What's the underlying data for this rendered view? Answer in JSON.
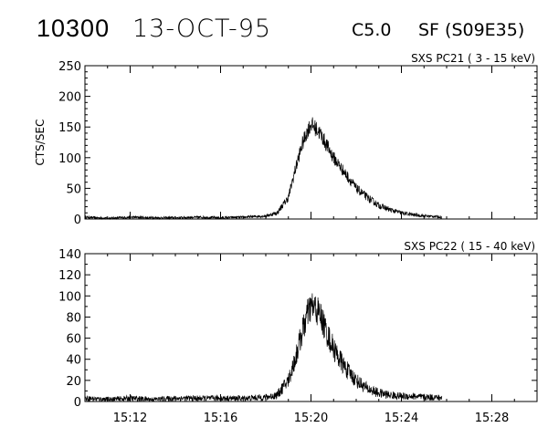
{
  "header": {
    "event_number": "10300",
    "date": "13-OCT-95",
    "goes_class": "C5.0",
    "flare_info": "SF (S09E35)"
  },
  "chart_data": [
    {
      "type": "line",
      "title": "SXS PC21  (  3 - 15 keV)",
      "xlabel": "",
      "ylabel": "CTS/SEC",
      "xlim": [
        "15:10",
        "15:30"
      ],
      "ylim": [
        0,
        250
      ],
      "xticks": [
        "15:12",
        "15:16",
        "15:20",
        "15:24",
        "15:28"
      ],
      "yticks": [
        "0",
        "50",
        "100",
        "150",
        "200",
        "250"
      ],
      "grid": false,
      "series": [
        {
          "x": [
            "15:10",
            "15:11",
            "15:12",
            "15:13",
            "15:14",
            "15:15",
            "15:16",
            "15:17",
            "15:18",
            "15:18.5",
            "15:19",
            "15:19.3",
            "15:19.6",
            "15:19.8",
            "15:20",
            "15:20.2",
            "15:20.4",
            "15:20.7",
            "15:21",
            "15:21.5",
            "15:22",
            "15:22.5",
            "15:23",
            "15:23.5",
            "15:24",
            "15:24.5",
            "15:25",
            "15:25.5",
            "15:25.8"
          ],
          "values": [
            3,
            1,
            3,
            2,
            2,
            3,
            2,
            3,
            5,
            10,
            35,
            80,
            120,
            140,
            155,
            148,
            140,
            120,
            100,
            75,
            50,
            35,
            22,
            15,
            10,
            7,
            5,
            4,
            3
          ]
        }
      ]
    },
    {
      "type": "line",
      "title": "SXS PC22  ( 15 - 40 keV)",
      "xlabel": "",
      "ylabel": "",
      "xlim": [
        "15:10",
        "15:30"
      ],
      "ylim": [
        0,
        140
      ],
      "xticks": [
        "15:12",
        "15:16",
        "15:20",
        "15:24",
        "15:28"
      ],
      "yticks": [
        "0",
        "20",
        "40",
        "60",
        "80",
        "100",
        "120",
        "140"
      ],
      "grid": false,
      "series": [
        {
          "x": [
            "15:10",
            "15:11",
            "15:12",
            "15:13",
            "15:14",
            "15:15",
            "15:16",
            "15:17",
            "15:18",
            "15:18.5",
            "15:19",
            "15:19.3",
            "15:19.6",
            "15:19.8",
            "15:20",
            "15:20.2",
            "15:20.4",
            "15:20.7",
            "15:21",
            "15:21.5",
            "15:22",
            "15:22.5",
            "15:23",
            "15:23.5",
            "15:24",
            "15:24.5",
            "15:25",
            "15:25.5",
            "15:25.8"
          ],
          "values": [
            3,
            2,
            3,
            2,
            3,
            3,
            3,
            3,
            4,
            6,
            20,
            40,
            65,
            80,
            90,
            88,
            82,
            65,
            50,
            32,
            20,
            12,
            8,
            6,
            5,
            5,
            4,
            4,
            3
          ]
        }
      ]
    }
  ]
}
